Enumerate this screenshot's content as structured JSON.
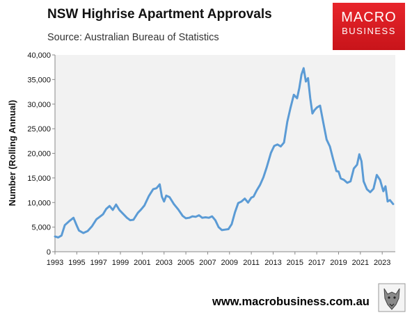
{
  "title": "NSW Highrise Apartment Approvals",
  "subtitle": "Source: Australian Bureau of Statistics",
  "logo": {
    "line1": "MACRO",
    "line2": "BUSINESS"
  },
  "footer_url": "www.macrobusiness.com.au",
  "chart_data": {
    "type": "line",
    "title": "NSW Highrise Apartment Approvals",
    "xlabel": "",
    "ylabel": "Number (Rolling Annual)",
    "xlim": [
      1993,
      2024.2
    ],
    "ylim": [
      0,
      40000
    ],
    "x_ticks": [
      "1993",
      "1995",
      "1997",
      "1999",
      "2001",
      "2003",
      "2005",
      "2007",
      "2009",
      "2011",
      "2013",
      "2015",
      "2017",
      "2019",
      "2021",
      "2023"
    ],
    "y_ticks": [
      "0",
      "5,000",
      "10,000",
      "15,000",
      "20,000",
      "25,000",
      "30,000",
      "35,000",
      "40,000"
    ],
    "grid": false,
    "line_color": "#5b9bd5",
    "plot_background": "#f2f2f2",
    "series": [
      {
        "x": [
          1993,
          1993.3,
          1993.6,
          1993.9,
          1994.3,
          1994.7,
          1995.0,
          1995.2,
          1995.6,
          1996.0,
          1996.4,
          1996.8,
          1997.1,
          1997.4,
          1997.7,
          1998.0,
          1998.3,
          1998.6,
          1998.9,
          1999.2,
          1999.6,
          1999.9,
          2000.2,
          2000.6,
          2000.9,
          2001.2,
          2001.6,
          2002.0,
          2002.3,
          2002.6,
          2002.8,
          2003.0,
          2003.2,
          2003.5,
          2003.9,
          2004.3,
          2004.7,
          2005.0,
          2005.3,
          2005.6,
          2005.9,
          2006.2,
          2006.5,
          2006.8,
          2007.1,
          2007.4,
          2007.7,
          2008.0,
          2008.3,
          2008.6,
          2008.9,
          2009.2,
          2009.5,
          2009.8,
          2010.1,
          2010.4,
          2010.7,
          2011.0,
          2011.2,
          2011.5,
          2011.8,
          2012.1,
          2012.4,
          2012.8,
          2013.1,
          2013.4,
          2013.7,
          2014.0,
          2014.3,
          2014.6,
          2014.9,
          2015.2,
          2015.4,
          2015.6,
          2015.8,
          2016.0,
          2016.2,
          2016.4,
          2016.6,
          2016.8,
          2017.0,
          2017.3,
          2017.6,
          2017.9,
          2018.2,
          2018.5,
          2018.8,
          2019.0,
          2019.2,
          2019.5,
          2019.8,
          2020.1,
          2020.4,
          2020.7,
          2020.9,
          2021.1,
          2021.3,
          2021.6,
          2021.9,
          2022.2,
          2022.5,
          2022.8,
          2023.1,
          2023.3,
          2023.5,
          2023.7,
          2024.0
        ],
        "y": [
          3100,
          2900,
          3300,
          5400,
          6200,
          6900,
          5300,
          4300,
          3800,
          4200,
          5200,
          6600,
          7100,
          7600,
          8700,
          9300,
          8500,
          9600,
          8500,
          7800,
          6900,
          6400,
          6500,
          7900,
          8600,
          9400,
          11300,
          12700,
          12900,
          13700,
          11200,
          10200,
          11400,
          11100,
          9700,
          8600,
          7300,
          6800,
          6900,
          7200,
          7100,
          7400,
          6900,
          7000,
          6900,
          7200,
          6400,
          5000,
          4400,
          4500,
          4600,
          5600,
          8000,
          9900,
          10200,
          10800,
          10000,
          11000,
          11200,
          12500,
          13600,
          15100,
          17100,
          20100,
          21500,
          21800,
          21400,
          22200,
          26400,
          29300,
          31900,
          31200,
          33300,
          36000,
          37300,
          34600,
          35300,
          31200,
          28100,
          28800,
          29300,
          29700,
          26200,
          22800,
          21400,
          18800,
          16400,
          16300,
          14900,
          14600,
          14000,
          14300,
          16900,
          17700,
          19800,
          18400,
          14300,
          12700,
          12100,
          12800,
          15600,
          14600,
          12300,
          13300,
          10200,
          10500,
          9700
        ]
      }
    ]
  }
}
